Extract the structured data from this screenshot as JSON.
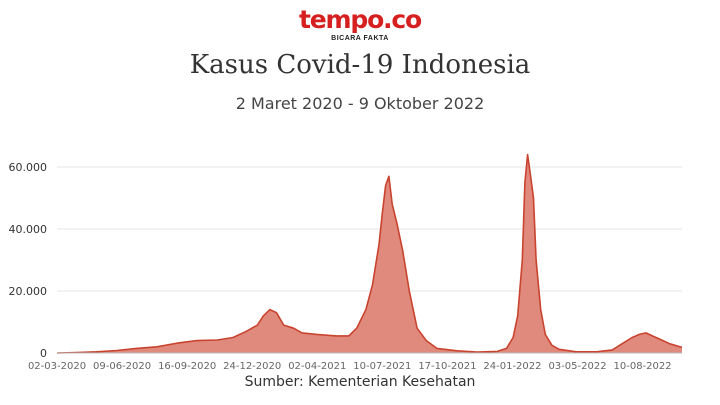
{
  "brand": {
    "name": "tempo.co",
    "tagline": "BICARA FAKTA",
    "color": "#d6201f"
  },
  "source_label": "Sumber: Kementerian Kesehatan",
  "chart_data": {
    "type": "area",
    "title": "Kasus Covid-19 Indonesia",
    "subtitle": "2 Maret 2020 - 9 Oktober 2022",
    "xlabel": "",
    "ylabel": "",
    "x_range": [
      "2020-03-02",
      "2022-10-09"
    ],
    "ylim": [
      0,
      70000
    ],
    "y_ticks": [
      0,
      20000,
      40000,
      60000
    ],
    "y_tick_labels": [
      "0",
      "20.000",
      "40.000",
      "60.000"
    ],
    "x_ticks": [
      "2020-03-02",
      "2020-06-09",
      "2020-09-16",
      "2020-12-24",
      "2021-04-02",
      "2021-07-10",
      "2021-10-17",
      "2022-01-24",
      "2022-05-03",
      "2022-08-10"
    ],
    "x_tick_labels": [
      "02-03-2020",
      "09-06-2020",
      "16-09-2020",
      "24-12-2020",
      "02-04-2021",
      "10-07-2021",
      "17-10-2021",
      "24-01-2022",
      "03-05-2022",
      "10-08-2022"
    ],
    "grid": true,
    "fill_color": "#df8a7c",
    "line_color": "#c9432f",
    "series": [
      {
        "x": [
          "2020-03-02",
          "2020-04-01",
          "2020-05-01",
          "2020-06-01",
          "2020-07-01",
          "2020-08-01",
          "2020-09-01",
          "2020-10-01",
          "2020-11-01",
          "2020-11-25",
          "2020-12-15",
          "2021-01-01",
          "2021-01-10",
          "2021-01-20",
          "2021-01-30",
          "2021-02-10",
          "2021-02-25",
          "2021-03-10",
          "2021-04-01",
          "2021-05-01",
          "2021-05-20",
          "2021-06-01",
          "2021-06-15",
          "2021-06-25",
          "2021-07-05",
          "2021-07-10",
          "2021-07-15",
          "2021-07-20",
          "2021-07-25",
          "2021-08-01",
          "2021-08-10",
          "2021-08-20",
          "2021-09-01",
          "2021-09-15",
          "2021-10-01",
          "2021-11-01",
          "2021-12-01",
          "2022-01-01",
          "2022-01-15",
          "2022-01-25",
          "2022-02-01",
          "2022-02-08",
          "2022-02-12",
          "2022-02-16",
          "2022-02-20",
          "2022-02-25",
          "2022-03-01",
          "2022-03-08",
          "2022-03-15",
          "2022-03-25",
          "2022-04-05",
          "2022-05-01",
          "2022-06-01",
          "2022-06-25",
          "2022-07-10",
          "2022-07-25",
          "2022-08-05",
          "2022-08-15",
          "2022-08-25",
          "2022-09-05",
          "2022-09-20",
          "2022-10-09"
        ],
        "values": [
          0,
          150,
          400,
          800,
          1500,
          2000,
          3200,
          4000,
          4200,
          5000,
          7000,
          9000,
          12000,
          14000,
          13000,
          9000,
          8000,
          6500,
          6000,
          5500,
          5500,
          8000,
          14000,
          22000,
          35000,
          45000,
          54000,
          57000,
          48000,
          42000,
          33000,
          20000,
          8000,
          4000,
          1500,
          700,
          300,
          500,
          1500,
          5000,
          12000,
          30000,
          55000,
          64000,
          58000,
          50000,
          30000,
          14000,
          6000,
          2500,
          1200,
          400,
          400,
          1000,
          3000,
          5000,
          6000,
          6500,
          5500,
          4500,
          3000,
          1800
        ]
      }
    ]
  }
}
